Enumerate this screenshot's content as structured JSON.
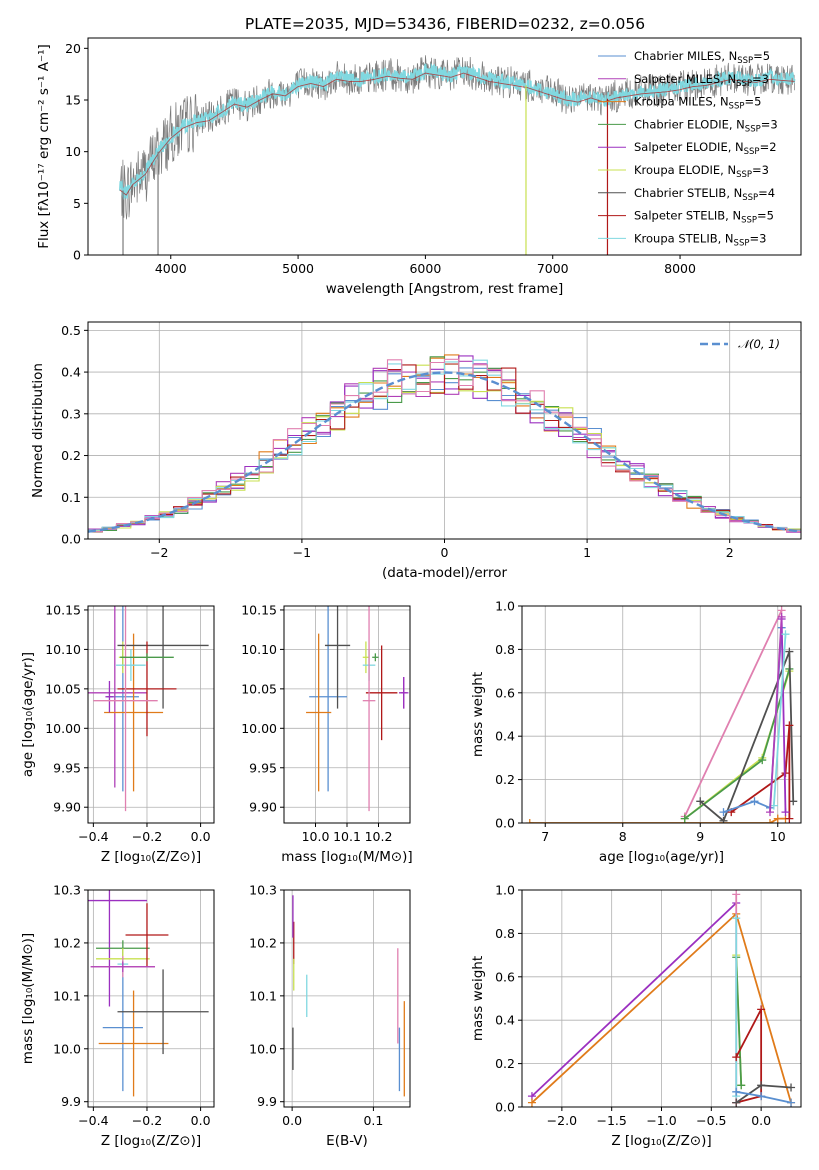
{
  "figure": {
    "title": "PLATE=2035, MJD=53436, FIBERID=0232, z=0.056"
  },
  "colors": {
    "Chabrier MILES": "#5a8fd0",
    "Salpeter MILES": "#b040b8",
    "Kroupa MILES": "#e07b1a",
    "Chabrier ELODIE": "#4a9a4a",
    "Salpeter ELODIE": "#9b30c0",
    "Kroupa ELODIE": "#c8e050",
    "Chabrier STELIB": "#505050",
    "Salpeter STELIB": "#b01818",
    "Kroupa STELIB": "#80d8e0",
    "pink": "#e080b0",
    "gaussian": "#5a8fd0"
  },
  "chart_data": [
    {
      "id": "spectrum",
      "type": "line",
      "xlabel": "wavelength [Angstrom, rest frame]",
      "ylabel": "Flux [fλ10⁻¹⁷ erg cm⁻² s⁻¹ A⁻¹]",
      "xlim": [
        3350,
        8950
      ],
      "ylim": [
        0,
        21
      ],
      "xticks": [
        4000,
        5000,
        6000,
        7000,
        8000
      ],
      "yticks": [
        0,
        5,
        10,
        15,
        20
      ],
      "grid": false,
      "legend_position": "right",
      "legend": [
        {
          "label": "Chabrier MILES, N",
          "sub": "SSP",
          "suffix": "=5"
        },
        {
          "label": "Salpeter MILES, N",
          "sub": "SSP",
          "suffix": "=3"
        },
        {
          "label": "Kroupa MILES, N",
          "sub": "SSP",
          "suffix": "=5"
        },
        {
          "label": "Chabrier ELODIE, N",
          "sub": "SSP",
          "suffix": "=3"
        },
        {
          "label": "Salpeter ELODIE, N",
          "sub": "SSP",
          "suffix": "=2"
        },
        {
          "label": "Kroupa ELODIE, N",
          "sub": "SSP",
          "suffix": "=3"
        },
        {
          "label": "Chabrier STELIB, N",
          "sub": "SSP",
          "suffix": "=4"
        },
        {
          "label": "Salpeter STELIB, N",
          "sub": "SSP",
          "suffix": "=5"
        },
        {
          "label": "Kroupa STELIB, N",
          "sub": "SSP",
          "suffix": "=3"
        }
      ],
      "continuum": {
        "x": [
          3600,
          3650,
          3700,
          3800,
          3900,
          4000,
          4100,
          4200,
          4300,
          4400,
          4500,
          4600,
          4700,
          4800,
          4900,
          5000,
          5100,
          5200,
          5300,
          5400,
          5500,
          5600,
          5700,
          5800,
          5900,
          6000,
          6100,
          6200,
          6300,
          6400,
          6500,
          6600,
          6700,
          6800,
          6900,
          7000,
          7100,
          7200,
          7300,
          7400,
          7500,
          7600,
          7700,
          7800,
          7900,
          8000,
          8100,
          8200,
          8300,
          8400,
          8500,
          8600,
          8700,
          8800,
          8900
        ],
        "y": [
          6.5,
          6.0,
          7.0,
          8.0,
          10.0,
          11.5,
          12.5,
          13.0,
          13.2,
          14.0,
          14.8,
          14.5,
          15.2,
          15.8,
          15.6,
          16.5,
          16.8,
          16.5,
          17.2,
          17.0,
          17.0,
          17.2,
          17.5,
          17.3,
          17.2,
          17.8,
          17.6,
          17.4,
          17.8,
          17.4,
          17.0,
          16.8,
          16.6,
          16.4,
          16.0,
          15.6,
          15.2,
          15.0,
          15.4,
          15.0,
          15.4,
          15.6,
          15.8,
          15.9,
          16.0,
          16.2,
          16.5,
          16.6,
          16.9,
          17.2,
          17.0,
          16.9,
          17.2,
          17.1,
          17.0
        ]
      },
      "drops": [
        {
          "x": 3625,
          "y": 0
        },
        {
          "x": 3900,
          "y": 0
        },
        {
          "x": 6790,
          "y": 0
        },
        {
          "x": 7430,
          "y": 0
        }
      ]
    },
    {
      "id": "residuals",
      "type": "step",
      "xlabel": "(data-model)/error",
      "ylabel": "Normed distribution",
      "xlim": [
        -2.5,
        2.5
      ],
      "ylim": [
        0,
        0.52
      ],
      "xticks": [
        -2,
        -1,
        0,
        1,
        2
      ],
      "yticks": [
        0.0,
        0.1,
        0.2,
        0.3,
        0.4,
        0.5
      ],
      "grid": true,
      "legend_position": "top-right",
      "legend": [
        {
          "label": "𝒩(0, 1)"
        }
      ],
      "bin_width": 0.1,
      "gaussian": {
        "mu": 0,
        "sigma": 1
      }
    },
    {
      "id": "age-z",
      "type": "errorbar",
      "xlabel": "Z [log₁₀(Z/Z⊙)]",
      "ylabel": "age  [log₁₀(age/yr)]",
      "xlim": [
        -0.42,
        0.05
      ],
      "ylim": [
        9.88,
        10.155
      ],
      "xticks": [
        -0.4,
        -0.2,
        0.0
      ],
      "yticks": [
        9.9,
        9.95,
        10.0,
        10.05,
        10.1,
        10.15
      ],
      "grid": true,
      "points": [
        {
          "series": "Chabrier MILES",
          "x": -0.29,
          "y": 10.04,
          "xerr": 0.06,
          "yerr": 0.12
        },
        {
          "series": "Salpeter MILES",
          "x": -0.32,
          "y": 10.045,
          "xerr": 0.12,
          "yerr": 0.12
        },
        {
          "series": "Kroupa MILES",
          "x": -0.25,
          "y": 10.02,
          "xerr": 0.11,
          "yerr": 0.1
        },
        {
          "series": "Chabrier ELODIE",
          "x": -0.29,
          "y": 10.09,
          "xerr": 0.01,
          "yerr": 0.015
        },
        {
          "series": "Salpeter ELODIE",
          "x": -0.34,
          "y": 10.04,
          "xerr": 0.015,
          "yerr": 0.02
        },
        {
          "series": "Kroupa ELODIE",
          "x": -0.29,
          "y": 10.09,
          "xerr": 0.015,
          "yerr": 0.02
        },
        {
          "series": "Chabrier STELIB",
          "x": -0.14,
          "y": 10.105,
          "xerr": 0.17,
          "yerr": 0.08
        },
        {
          "series": "Salpeter STELIB",
          "x": -0.2,
          "y": 10.05,
          "xerr": 0.11,
          "yerr": 0.06
        },
        {
          "series": "Kroupa STELIB",
          "x": -0.26,
          "y": 10.08,
          "xerr": 0.055,
          "yerr": 0.02
        },
        {
          "series": "pink",
          "x": -0.28,
          "y": 10.035,
          "xerr": 0.12,
          "yerr": 0.14
        },
        {
          "series": "Chabrier ELODIE",
          "x": -0.2,
          "y": 10.09,
          "xerr": 0.1,
          "yerr": 0.005
        }
      ]
    },
    {
      "id": "age-mass",
      "type": "errorbar",
      "xlabel": "mass [log₁₀(M/M⊙)]",
      "ylabel": "",
      "xlim": [
        9.9,
        10.3
      ],
      "ylim": [
        9.88,
        10.155
      ],
      "xticks": [
        10.0,
        10.1,
        10.2
      ],
      "yticks": [
        9.9,
        9.95,
        10.0,
        10.05,
        10.1,
        10.15
      ],
      "grid": true,
      "points": [
        {
          "series": "Chabrier MILES",
          "x": 10.04,
          "y": 10.04,
          "xerr": 0.06,
          "yerr": 0.12
        },
        {
          "series": "Salpeter MILES",
          "x": 10.28,
          "y": 10.045,
          "xerr": 0.01,
          "yerr": 0.02
        },
        {
          "series": "Kroupa MILES",
          "x": 10.01,
          "y": 10.02,
          "xerr": 0.04,
          "yerr": 0.1
        },
        {
          "series": "Chabrier ELODIE",
          "x": 10.19,
          "y": 10.09,
          "xerr": 0.01,
          "yerr": 0.005
        },
        {
          "series": "Salpeter ELODIE",
          "x": 10.28,
          "y": 10.045,
          "xerr": 0.015,
          "yerr": 0.02
        },
        {
          "series": "Kroupa ELODIE",
          "x": 10.16,
          "y": 10.09,
          "xerr": 0.01,
          "yerr": 0.02
        },
        {
          "series": "Chabrier STELIB",
          "x": 10.07,
          "y": 10.105,
          "xerr": 0.04,
          "yerr": 0.08
        },
        {
          "series": "Salpeter STELIB",
          "x": 10.21,
          "y": 10.045,
          "xerr": 0.05,
          "yerr": 0.06
        },
        {
          "series": "Kroupa STELIB",
          "x": 10.17,
          "y": 10.08,
          "xerr": 0.02,
          "yerr": 0.02
        },
        {
          "series": "pink",
          "x": 10.17,
          "y": 10.035,
          "xerr": 0.02,
          "yerr": 0.14
        }
      ]
    },
    {
      "id": "weight-age",
      "type": "line",
      "xlabel": "age  [log₁₀(age/yr)]",
      "ylabel": "mass weight",
      "xlim": [
        6.7,
        10.3
      ],
      "ylim": [
        0,
        1.0
      ],
      "xticks": [
        7,
        8,
        9,
        10
      ],
      "yticks": [
        0.0,
        0.2,
        0.4,
        0.6,
        0.8,
        1.0
      ],
      "grid": true,
      "series": [
        {
          "name": "Kroupa MILES",
          "x": [
            6.8,
            9.9,
            10.0,
            10.1
          ],
          "y": [
            0.0,
            0.0,
            0.02,
            0.02
          ]
        },
        {
          "name": "pink",
          "x": [
            8.8,
            10.05
          ],
          "y": [
            0.03,
            0.98
          ]
        },
        {
          "name": "Kroupa ELODIE",
          "x": [
            8.8,
            9.8,
            10.15
          ],
          "y": [
            0.02,
            0.3,
            0.7
          ]
        },
        {
          "name": "Chabrier ELODIE",
          "x": [
            8.8,
            9.8,
            10.15
          ],
          "y": [
            0.02,
            0.29,
            0.71
          ]
        },
        {
          "name": "Chabrier STELIB",
          "x": [
            9.0,
            9.3,
            10.15,
            10.2
          ],
          "y": [
            0.1,
            0.01,
            0.79,
            0.1
          ]
        },
        {
          "name": "Salpeter STELIB",
          "x": [
            9.4,
            10.1,
            10.15,
            10.15
          ],
          "y": [
            0.05,
            0.23,
            0.45,
            0.02
          ]
        },
        {
          "name": "Chabrier MILES",
          "x": [
            9.3,
            9.7,
            9.9,
            10.05
          ],
          "y": [
            0.05,
            0.1,
            0.07,
            0.9
          ]
        },
        {
          "name": "Salpeter ELODIE",
          "x": [
            10.05,
            10.1
          ],
          "y": [
            0.94,
            0.05
          ]
        },
        {
          "name": "Kroupa STELIB",
          "x": [
            9.95,
            10.1
          ],
          "y": [
            0.08,
            0.87
          ]
        },
        {
          "name": "Salpeter MILES",
          "x": [
            9.9,
            10.05
          ],
          "y": [
            0.05,
            0.95
          ]
        }
      ]
    },
    {
      "id": "mass-z",
      "type": "errorbar",
      "xlabel": "Z [log₁₀(Z/Z⊙)]",
      "ylabel": "mass [log₁₀(M/M⊙)]",
      "xlim": [
        -0.42,
        0.05
      ],
      "ylim": [
        9.89,
        10.3
      ],
      "xticks": [
        -0.4,
        -0.2,
        0.0
      ],
      "yticks": [
        9.9,
        10.0,
        10.1,
        10.2,
        10.3
      ],
      "grid": true,
      "points": [
        {
          "series": "Chabrier MILES",
          "x": -0.29,
          "y": 10.04,
          "xerr": 0.075,
          "yerr": 0.12
        },
        {
          "series": "Salpeter ELODIE",
          "x": -0.34,
          "y": 10.28,
          "xerr": 0.14,
          "yerr": 0.2
        },
        {
          "series": "Kroupa MILES",
          "x": -0.25,
          "y": 10.01,
          "xerr": 0.13,
          "yerr": 0.1
        },
        {
          "series": "Chabrier ELODIE",
          "x": -0.29,
          "y": 10.19,
          "xerr": 0.1,
          "yerr": 0.015
        },
        {
          "series": "Kroupa ELODIE",
          "x": -0.29,
          "y": 10.17,
          "xerr": 0.1,
          "yerr": 0.02
        },
        {
          "series": "Chabrier STELIB",
          "x": -0.14,
          "y": 10.07,
          "xerr": 0.17,
          "yerr": 0.08
        },
        {
          "series": "Salpeter STELIB",
          "x": -0.2,
          "y": 10.215,
          "xerr": 0.08,
          "yerr": 0.06
        },
        {
          "series": "Kroupa STELIB",
          "x": -0.29,
          "y": 10.16,
          "xerr": 0.02,
          "yerr": 0.01
        },
        {
          "series": "pink",
          "x": -0.29,
          "y": 10.155,
          "xerr": 0.12,
          "yerr": 0.02
        },
        {
          "series": "Salpeter MILES",
          "x": -0.29,
          "y": 10.155,
          "xerr": 0.12,
          "yerr": 0.01
        }
      ]
    },
    {
      "id": "mass-ebv",
      "type": "errorbar",
      "xlabel": "E(B-V)",
      "ylabel": "",
      "xlim": [
        -0.01,
        0.145
      ],
      "ylim": [
        9.89,
        10.3
      ],
      "xticks": [
        0.0,
        0.1
      ],
      "yticks": [
        9.9,
        10.0,
        10.1,
        10.2,
        10.3
      ],
      "grid": true,
      "points": [
        {
          "series": "Chabrier STELIB",
          "x": 0.001,
          "y": 10.0,
          "xerr": 0,
          "yerr": 0.04
        },
        {
          "series": "Salpeter STELIB",
          "x": 0.002,
          "y": 10.2,
          "xerr": 0,
          "yerr": 0.04
        },
        {
          "series": "Salpeter ELODIE",
          "x": 0.001,
          "y": 10.25,
          "xerr": 0,
          "yerr": 0.04
        },
        {
          "series": "Kroupa ELODIE",
          "x": 0.002,
          "y": 10.14,
          "xerr": 0,
          "yerr": 0.03
        },
        {
          "series": "Kroupa STELIB",
          "x": 0.018,
          "y": 10.1,
          "xerr": 0,
          "yerr": 0.04
        },
        {
          "series": "pink",
          "x": 0.13,
          "y": 10.1,
          "xerr": 0,
          "yerr": 0.09
        },
        {
          "series": "Chabrier MILES",
          "x": 0.132,
          "y": 9.98,
          "xerr": 0,
          "yerr": 0.06
        },
        {
          "series": "Kroupa MILES",
          "x": 0.138,
          "y": 10.0,
          "xerr": 0,
          "yerr": 0.09
        }
      ]
    },
    {
      "id": "weight-z",
      "type": "line",
      "xlabel": "Z [log₁₀(Z/Z⊙)]",
      "ylabel": "mass weight",
      "xlim": [
        -2.4,
        0.4
      ],
      "ylim": [
        0,
        1.0
      ],
      "xticks": [
        -2.0,
        -1.5,
        -1.0,
        -0.5,
        0.0
      ],
      "yticks": [
        0.0,
        0.2,
        0.4,
        0.6,
        0.8,
        1.0
      ],
      "grid": true,
      "series": [
        {
          "name": "Salpeter ELODIE",
          "x": [
            -2.3,
            -0.25
          ],
          "y": [
            0.05,
            0.94
          ]
        },
        {
          "name": "Kroupa MILES",
          "x": [
            -2.3,
            -0.25,
            0.3
          ],
          "y": [
            0.02,
            0.89,
            0.02
          ]
        },
        {
          "name": "pink",
          "x": [
            -0.25,
            -0.25
          ],
          "y": [
            0.02,
            0.98
          ]
        },
        {
          "name": "Kroupa ELODIE",
          "x": [
            -0.25,
            -0.2
          ],
          "y": [
            0.7,
            0.1
          ]
        },
        {
          "name": "Chabrier ELODIE",
          "x": [
            -0.25,
            -0.2
          ],
          "y": [
            0.69,
            0.1
          ]
        },
        {
          "name": "Kroupa STELIB",
          "x": [
            -0.25,
            -0.25
          ],
          "y": [
            0.05,
            0.87
          ]
        },
        {
          "name": "Salpeter STELIB",
          "x": [
            -0.25,
            0.0,
            0.0,
            -0.25
          ],
          "y": [
            0.23,
            0.45,
            0.05,
            0.02
          ]
        },
        {
          "name": "Chabrier STELIB",
          "x": [
            -0.25,
            0.0,
            0.3
          ],
          "y": [
            0.02,
            0.1,
            0.09
          ]
        },
        {
          "name": "Chabrier MILES",
          "x": [
            -0.25,
            0.0,
            0.3
          ],
          "y": [
            0.07,
            0.05,
            0.02
          ]
        }
      ]
    }
  ]
}
